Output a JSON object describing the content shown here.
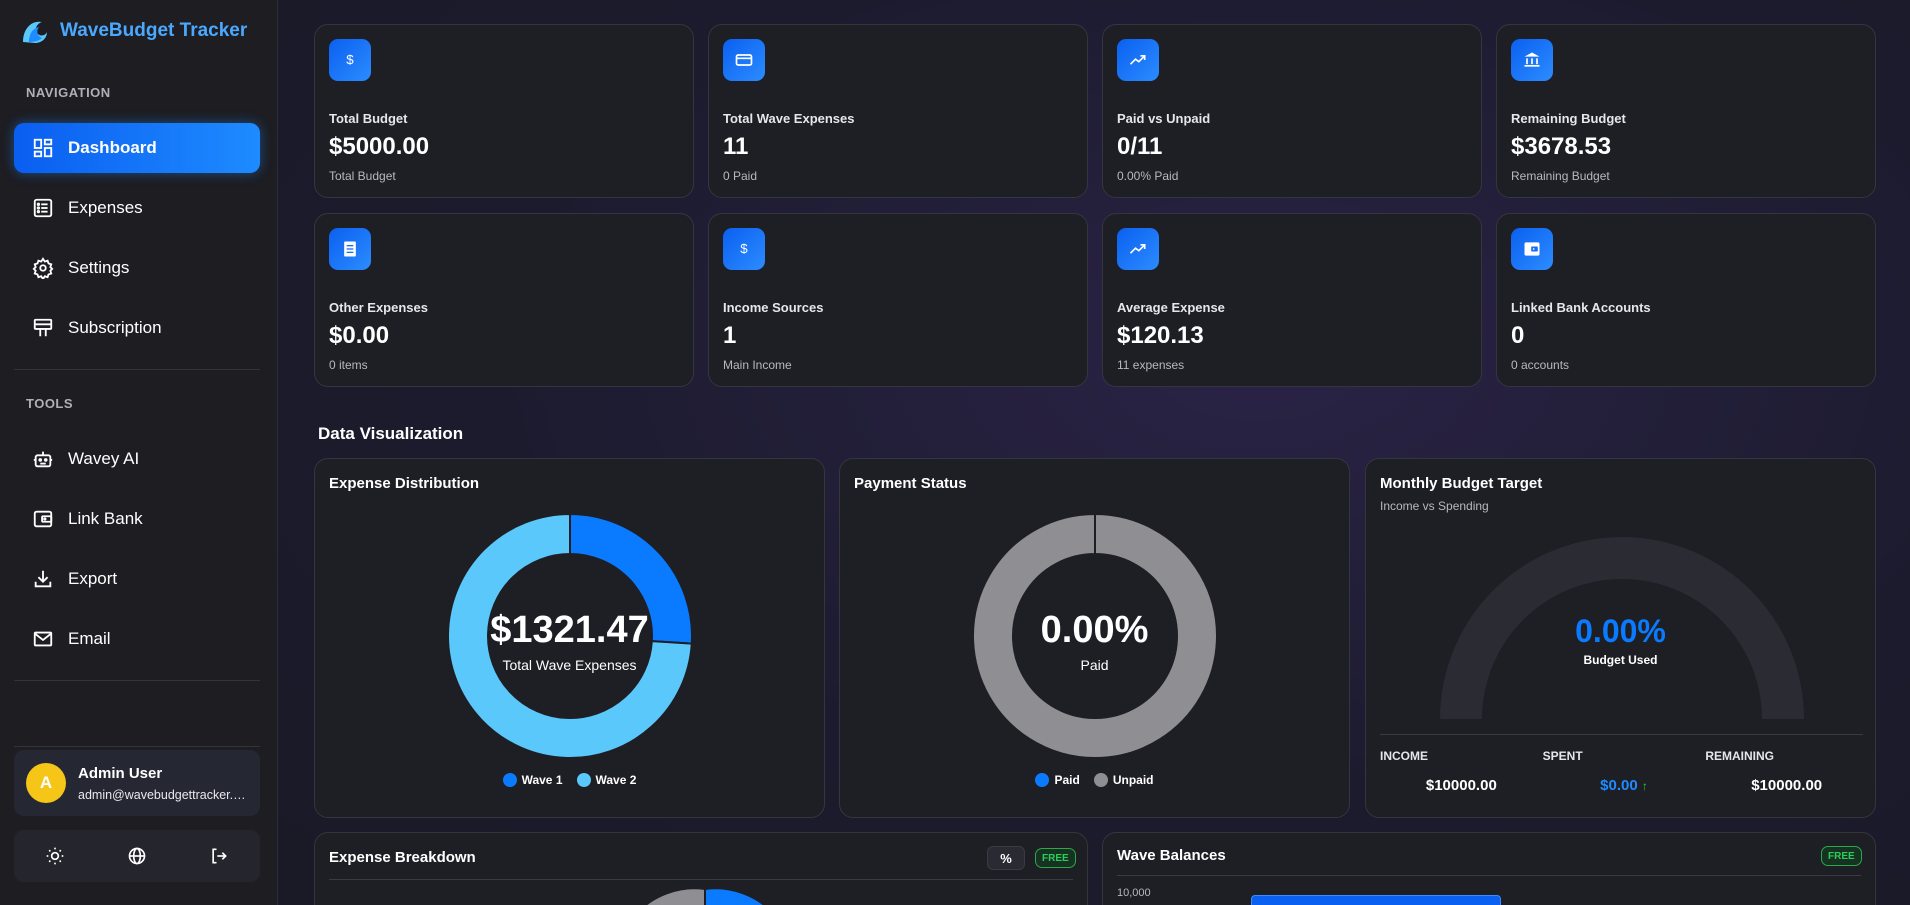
{
  "app": {
    "title": "WaveBudget Tracker"
  },
  "sidebar": {
    "nav_label": "NAVIGATION",
    "tools_label": "TOOLS",
    "nav_items": [
      {
        "label": "Dashboard",
        "icon": "dashboard-icon",
        "active": true
      },
      {
        "label": "Expenses",
        "icon": "list-icon"
      },
      {
        "label": "Settings",
        "icon": "gear-icon"
      },
      {
        "label": "Subscription",
        "icon": "billboard-icon"
      }
    ],
    "tool_items": [
      {
        "label": "Wavey AI",
        "icon": "robot-icon"
      },
      {
        "label": "Link Bank",
        "icon": "wallet-icon"
      },
      {
        "label": "Export",
        "icon": "download-icon"
      },
      {
        "label": "Email",
        "icon": "mail-icon"
      }
    ],
    "user": {
      "initial": "A",
      "name": "Admin User",
      "email": "admin@wavebudgettracker.com"
    },
    "bottom_icons": [
      "sun-icon",
      "globe-icon",
      "logout-icon"
    ]
  },
  "stats": [
    {
      "label": "Total Budget",
      "value": "$5000.00",
      "sub": "Total Budget",
      "icon": "dollar-icon"
    },
    {
      "label": "Total Wave Expenses",
      "value": "11",
      "sub": "0 Paid",
      "icon": "card-icon"
    },
    {
      "label": "Paid vs Unpaid",
      "value": "0/11",
      "sub": "0.00% Paid",
      "icon": "trend-icon"
    },
    {
      "label": "Remaining Budget",
      "value": "$3678.53",
      "sub": "Remaining Budget",
      "icon": "bank-icon"
    },
    {
      "label": "Other Expenses",
      "value": "$0.00",
      "sub": "0 items",
      "icon": "document-icon"
    },
    {
      "label": "Income Sources",
      "value": "1",
      "sub": "Main Income",
      "icon": "dollar-icon"
    },
    {
      "label": "Average Expense",
      "value": "$120.13",
      "sub": "11 expenses",
      "icon": "trend-icon"
    },
    {
      "label": "Linked Bank Accounts",
      "value": "0",
      "sub": "0 accounts",
      "icon": "wallet-icon"
    }
  ],
  "visualization": {
    "section_title": "Data Visualization",
    "expense_distribution": {
      "title": "Expense Distribution",
      "center_value": "$1321.47",
      "center_label": "Total Wave Expenses",
      "legend": [
        "Wave 1",
        "Wave 2"
      ]
    },
    "payment_status": {
      "title": "Payment Status",
      "center_value": "0.00%",
      "center_label": "Paid",
      "legend": [
        "Paid",
        "Unpaid"
      ]
    },
    "budget_target": {
      "title": "Monthly Budget Target",
      "subtitle": "Income vs Spending",
      "center_value": "0.00%",
      "center_label": "Budget Used",
      "income_label": "INCOME",
      "income_value": "$10000.00",
      "spent_label": "SPENT",
      "spent_value": "$0.00",
      "remaining_label": "REMAINING",
      "remaining_value": "$10000.00"
    },
    "expense_breakdown": {
      "title": "Expense Breakdown",
      "pct_label": "%",
      "badge": "FREE"
    },
    "wave_balances": {
      "title": "Wave Balances",
      "badge": "FREE",
      "y_tick": "10,000"
    }
  },
  "colors": {
    "accent": "#0a7bff",
    "light_blue": "#5ac8fa",
    "gray": "#8e8e93",
    "green": "#2ecc5a"
  },
  "chart_data": [
    {
      "type": "pie",
      "title": "Expense Distribution",
      "categories": [
        "Wave 1",
        "Wave 2"
      ],
      "values": [
        0.26,
        0.74
      ],
      "colors": [
        "#0a7bff",
        "#5ac8fa"
      ]
    },
    {
      "type": "pie",
      "title": "Payment Status",
      "categories": [
        "Paid",
        "Unpaid"
      ],
      "values": [
        0,
        1
      ],
      "colors": [
        "#0a7bff",
        "#8e8e93"
      ]
    },
    {
      "type": "gauge",
      "title": "Monthly Budget Target",
      "values": [
        0
      ]
    }
  ]
}
